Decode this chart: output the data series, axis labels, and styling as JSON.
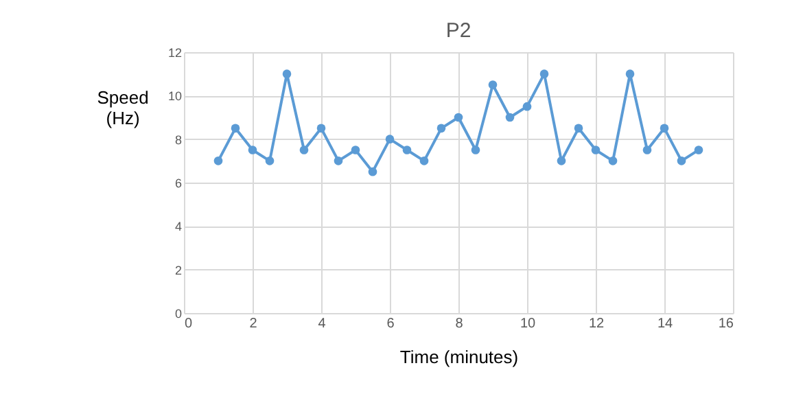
{
  "chart_data": {
    "type": "line",
    "title": "P2",
    "xlabel": "Time (minutes)",
    "ylabel": "Speed (Hz)",
    "x": [
      1,
      1.5,
      2,
      2.5,
      3,
      3.5,
      4,
      4.5,
      5,
      5.5,
      6,
      6.5,
      7,
      7.5,
      8,
      8.5,
      9,
      9.5,
      10,
      10.5,
      11,
      11.5,
      12,
      12.5,
      13,
      13.5,
      14,
      14.5,
      15
    ],
    "series": [
      {
        "color": "#5b9bd5",
        "values": [
          7,
          8.5,
          7.5,
          7,
          11,
          7.5,
          8.5,
          7,
          7.5,
          6.5,
          8,
          7.5,
          7,
          8.5,
          9,
          7.5,
          10.5,
          9,
          9.5,
          11,
          7,
          8.5,
          7.5,
          7,
          11,
          7.5,
          8.5,
          7,
          7.5
        ]
      }
    ],
    "xlim": [
      0,
      16
    ],
    "xticks": [
      0,
      2,
      4,
      6,
      8,
      10,
      12,
      14,
      16
    ],
    "ylim": [
      0,
      12
    ],
    "yticks": [
      0,
      2,
      4,
      6,
      8,
      10,
      12
    ],
    "grid": true,
    "marker": "circle",
    "line_style": "solid"
  }
}
